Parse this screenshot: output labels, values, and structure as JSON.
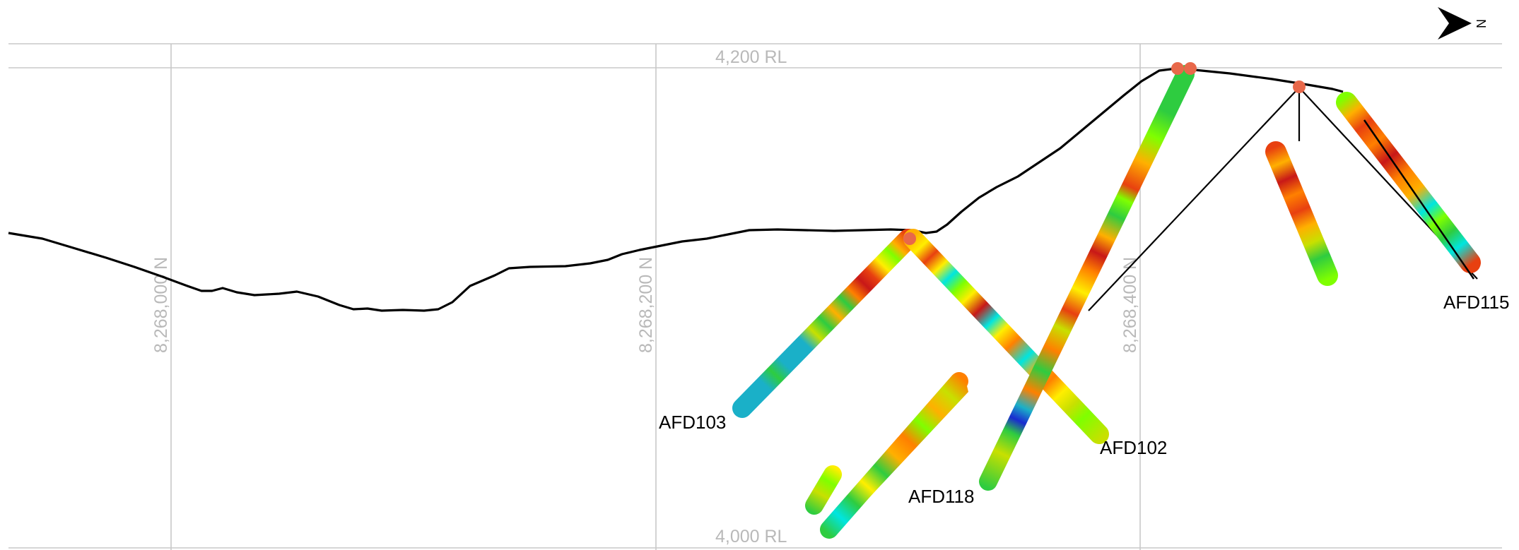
{
  "elevation_labels": {
    "top": "4,200 RL",
    "bottom": "4,000 RL"
  },
  "northing_labels": [
    "8,268,000 N",
    "8,268,200 N",
    "8,268,400 N"
  ],
  "north_arrow": {
    "letter": "N",
    "icon": "north-arrow-icon"
  },
  "drill_holes": [
    {
      "id": "afd103",
      "label": "AFD103"
    },
    {
      "id": "afd102",
      "label": "AFD102"
    },
    {
      "id": "afd118",
      "label": "AFD118"
    },
    {
      "id": "afd115",
      "label": "AFD115"
    }
  ],
  "colors": {
    "grid": "#c8c8c8",
    "grid_label": "#b9b9b9",
    "collar": "#e8684a",
    "assay_scale": [
      "#1ab0c8",
      "#00e5e0",
      "#2ecc40",
      "#7fff00",
      "#c8e000",
      "#ffee00",
      "#ffb000",
      "#ff8000",
      "#e84010",
      "#c81818",
      "#1a2bd0"
    ]
  }
}
